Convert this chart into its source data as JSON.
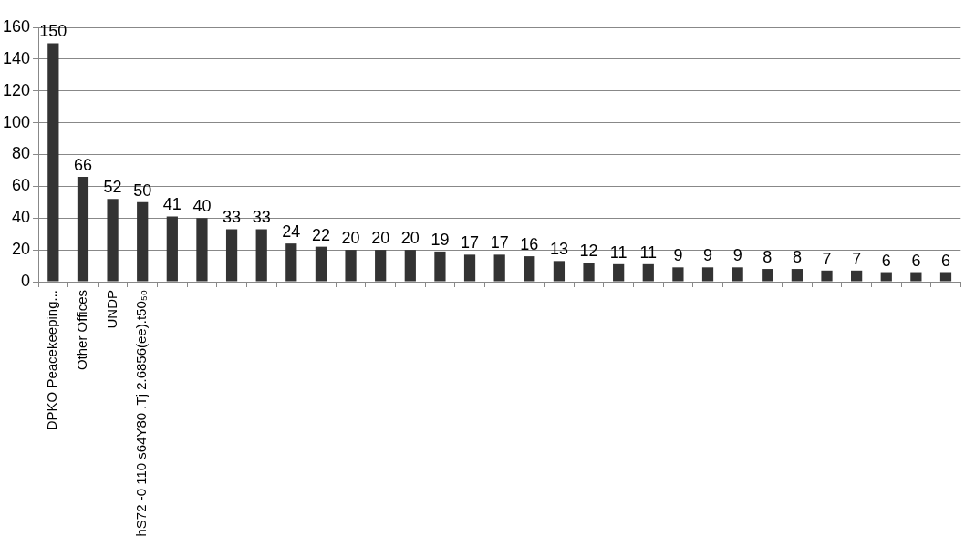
{
  "chart_data": {
    "type": "bar",
    "categories": [
      "DPKO Peacekeeping...",
      "Other Offices",
      "UNDP",
      "hS72 -0 110 s64Y80 .Tj 2.6856(ee).t50₅₀",
      null,
      null,
      null,
      null,
      null,
      null,
      null,
      null,
      null,
      null,
      null,
      null,
      null,
      null,
      null,
      null,
      null,
      null,
      null,
      null,
      null,
      null,
      null,
      null,
      null,
      null,
      null
    ],
    "values": [
      150,
      66,
      52,
      50,
      41,
      40,
      33,
      33,
      24,
      22,
      20,
      20,
      20,
      19,
      17,
      17,
      16,
      13,
      12,
      11,
      11,
      9,
      9,
      9,
      8,
      8,
      7,
      7,
      6,
      6,
      6
    ],
    "color": "#333333",
    "ylim": [
      0,
      160
    ],
    "yticks": [
      0,
      20,
      40,
      60,
      80,
      100,
      120,
      140,
      160
    ],
    "grid": "y",
    "data_labels": true,
    "legend": false
  }
}
